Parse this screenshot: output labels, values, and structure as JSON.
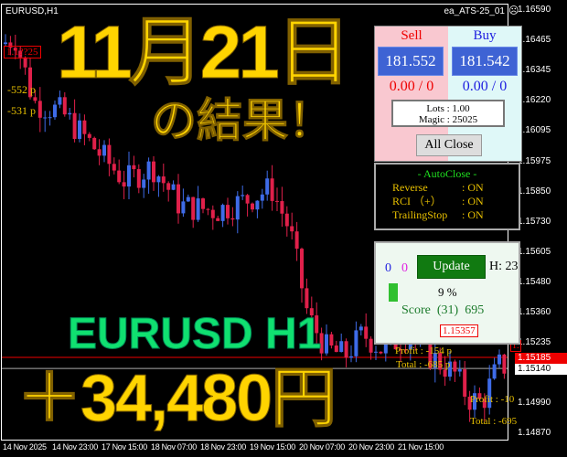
{
  "chart": {
    "symbol_label": "EURUSD,H1",
    "ea_label": "ea_ATS-25_01",
    "smiley_icon": "face-icon",
    "price_ticks": [
      "1.16590",
      "1.16465",
      "1.16345",
      "1.16220",
      "1.16095",
      "1.15975",
      "1.15850",
      "1.15730",
      "1.15605",
      "1.15480",
      "1.15360",
      "1.15235",
      "1.15115",
      "1.14990",
      "1.14870"
    ],
    "bid_label": "1.15185",
    "ask_label": "1.15140",
    "time_ticks": [
      "14 Nov 2025",
      "14 Nov 23:00",
      "17 Nov 15:00",
      "18 Nov 07:00",
      "18 Nov 23:00",
      "19 Nov 15:00",
      "20 Nov 07:00",
      "20 Nov 23:00",
      "21 Nov 15:00"
    ],
    "price_path": [
      [
        0,
        1.1645
      ],
      [
        20,
        1.1648
      ],
      [
        40,
        1.1622
      ],
      [
        70,
        1.1618
      ],
      [
        100,
        1.1606
      ],
      [
        140,
        1.159
      ],
      [
        170,
        1.1596
      ],
      [
        200,
        1.158
      ],
      [
        240,
        1.1578
      ],
      [
        270,
        1.1582
      ],
      [
        300,
        1.1587
      ],
      [
        320,
        1.157
      ],
      [
        340,
        1.1535
      ],
      [
        360,
        1.1522
      ],
      [
        380,
        1.1519
      ],
      [
        400,
        1.1528
      ],
      [
        420,
        1.1522
      ],
      [
        450,
        1.1528
      ],
      [
        470,
        1.152
      ],
      [
        500,
        1.1512
      ],
      [
        515,
        1.1502
      ],
      [
        530,
        1.15
      ],
      [
        548,
        1.1515
      ]
    ],
    "colors": {
      "bull": "#3e6be8",
      "bear": "#e0204a"
    }
  },
  "labels": {
    "box_top": "1.1??25",
    "loss1": "-552 p",
    "loss2": "-531 p",
    "box_mid": "1.15357",
    "profit1": "Profit : -154 p",
    "total1": "Total : -685 p",
    "profit2": "Profit : -10",
    "total2": "Total : -695",
    "box_right": "1."
  },
  "overlay": {
    "date": "11月21日",
    "result": "の結果！",
    "pair": "EURUSD H1",
    "amount": "＋34,480円"
  },
  "trade_panel": {
    "sell_label": "Sell",
    "buy_label": "Buy",
    "sell_price": "181.552",
    "buy_price": "181.542",
    "sell_pos": "0.00 / 0",
    "buy_pos": "0.00 / 0",
    "lots": "Lots   : 1.00",
    "magic": "Magic : 25025",
    "all_close": "All Close"
  },
  "autoclose": {
    "title": "- AutoClose -",
    "rows": [
      {
        "k": "Reverse",
        "v": ": ON"
      },
      {
        "k": "RCI （+）",
        "v": ": ON"
      },
      {
        "k": "TrailingStop",
        "v": ": ON"
      }
    ]
  },
  "score_panel": {
    "count_blue": "0",
    "count_pink": "0",
    "update": "Update",
    "hour": "H: 23",
    "progress_percent": 9,
    "progress_label": "9 %",
    "score": "Score  (31)  695"
  }
}
